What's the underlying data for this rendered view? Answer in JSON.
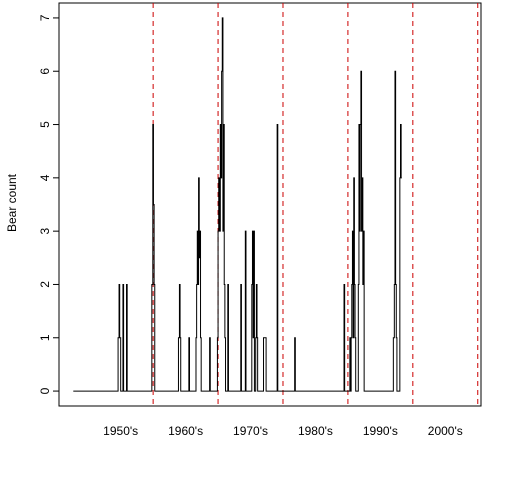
{
  "chart_data": {
    "type": "line",
    "title": "",
    "xlabel": "",
    "ylabel": "Bear count",
    "xlim": [
      1945.5,
      2010.5
    ],
    "ylim": [
      -0.28,
      7.28
    ],
    "y_ticks": [
      0,
      1,
      2,
      3,
      4,
      5,
      6,
      7
    ],
    "decades": [
      {
        "label": "1950's",
        "center": 1955
      },
      {
        "label": "1960's",
        "center": 1965
      },
      {
        "label": "1970's",
        "center": 1975
      },
      {
        "label": "1980's",
        "center": 1985
      },
      {
        "label": "1990's",
        "center": 1995
      },
      {
        "label": "2000's",
        "center": 2005
      }
    ],
    "dividers": [
      1960,
      1970,
      1980,
      1990,
      2000,
      2010
    ],
    "line_color": "#000000",
    "divider_color": "#cc0000",
    "series": [
      {
        "points": [
          [
            1947.7,
            0
          ],
          [
            1954.6,
            0
          ],
          [
            1954.6,
            1
          ],
          [
            1954.75,
            1
          ],
          [
            1954.75,
            2
          ],
          [
            1954.85,
            2
          ],
          [
            1954.85,
            1
          ],
          [
            1955.0,
            1
          ],
          [
            1955.0,
            0
          ],
          [
            1955.35,
            0
          ],
          [
            1955.35,
            2
          ],
          [
            1955.45,
            2
          ],
          [
            1955.45,
            0
          ],
          [
            1955.9,
            0
          ],
          [
            1955.9,
            2
          ],
          [
            1956.0,
            2
          ],
          [
            1956.0,
            0
          ],
          [
            1959.8,
            0
          ],
          [
            1959.8,
            2
          ],
          [
            1959.95,
            2
          ],
          [
            1959.95,
            5
          ],
          [
            1960.05,
            5
          ],
          [
            1960.05,
            3.5
          ],
          [
            1960.15,
            3.5
          ],
          [
            1960.15,
            2
          ],
          [
            1960.25,
            2
          ],
          [
            1960.25,
            0
          ],
          [
            1963.9,
            0
          ],
          [
            1963.9,
            1
          ],
          [
            1964.05,
            1
          ],
          [
            1964.05,
            2
          ],
          [
            1964.15,
            2
          ],
          [
            1964.15,
            1
          ],
          [
            1964.25,
            1
          ],
          [
            1964.25,
            0
          ],
          [
            1965.5,
            0
          ],
          [
            1965.5,
            1
          ],
          [
            1965.6,
            1
          ],
          [
            1965.6,
            0
          ],
          [
            1966.6,
            0
          ],
          [
            1966.6,
            1
          ],
          [
            1966.7,
            1
          ],
          [
            1966.7,
            2
          ],
          [
            1966.8,
            2
          ],
          [
            1966.8,
            3
          ],
          [
            1966.9,
            3
          ],
          [
            1966.9,
            2
          ],
          [
            1967.0,
            2
          ],
          [
            1967.0,
            4
          ],
          [
            1967.1,
            4
          ],
          [
            1967.1,
            2.5
          ],
          [
            1967.2,
            2.5
          ],
          [
            1967.2,
            3
          ],
          [
            1967.3,
            3
          ],
          [
            1967.3,
            1
          ],
          [
            1967.4,
            1
          ],
          [
            1967.4,
            0
          ],
          [
            1968.7,
            0
          ],
          [
            1968.7,
            1
          ],
          [
            1968.8,
            1
          ],
          [
            1968.8,
            0
          ],
          [
            1969.9,
            0
          ],
          [
            1969.9,
            1
          ],
          [
            1970.0,
            1
          ],
          [
            1970.0,
            3
          ],
          [
            1970.1,
            3
          ],
          [
            1970.1,
            4
          ],
          [
            1970.2,
            4
          ],
          [
            1970.2,
            3
          ],
          [
            1970.35,
            3
          ],
          [
            1970.35,
            5
          ],
          [
            1970.45,
            5
          ],
          [
            1970.45,
            4
          ],
          [
            1970.55,
            4
          ],
          [
            1970.55,
            6
          ],
          [
            1970.65,
            6
          ],
          [
            1970.65,
            7
          ],
          [
            1970.75,
            7
          ],
          [
            1970.75,
            3
          ],
          [
            1970.85,
            3
          ],
          [
            1970.85,
            5
          ],
          [
            1970.95,
            5
          ],
          [
            1970.95,
            2
          ],
          [
            1971.05,
            2
          ],
          [
            1971.05,
            1
          ],
          [
            1971.15,
            1
          ],
          [
            1971.15,
            0
          ],
          [
            1971.5,
            0
          ],
          [
            1971.5,
            2
          ],
          [
            1971.6,
            2
          ],
          [
            1971.6,
            0
          ],
          [
            1973.5,
            0
          ],
          [
            1973.5,
            2
          ],
          [
            1973.6,
            2
          ],
          [
            1973.6,
            0
          ],
          [
            1974.2,
            0
          ],
          [
            1974.2,
            3
          ],
          [
            1974.3,
            3
          ],
          [
            1974.3,
            0
          ],
          [
            1975.2,
            0
          ],
          [
            1975.2,
            2
          ],
          [
            1975.3,
            2
          ],
          [
            1975.3,
            3
          ],
          [
            1975.4,
            3
          ],
          [
            1975.4,
            1
          ],
          [
            1975.5,
            1
          ],
          [
            1975.5,
            3
          ],
          [
            1975.6,
            3
          ],
          [
            1975.6,
            0
          ],
          [
            1975.8,
            0
          ],
          [
            1975.8,
            1
          ],
          [
            1975.9,
            1
          ],
          [
            1975.9,
            2
          ],
          [
            1976.0,
            2
          ],
          [
            1976.0,
            1
          ],
          [
            1976.1,
            1
          ],
          [
            1976.1,
            0
          ],
          [
            1977.0,
            0
          ],
          [
            1977.0,
            1
          ],
          [
            1977.4,
            1
          ],
          [
            1977.4,
            0
          ],
          [
            1979.1,
            0
          ],
          [
            1979.1,
            5
          ],
          [
            1979.2,
            5
          ],
          [
            1979.2,
            0
          ],
          [
            1981.8,
            0
          ],
          [
            1981.8,
            1
          ],
          [
            1981.9,
            1
          ],
          [
            1981.9,
            0
          ],
          [
            1989.4,
            0
          ],
          [
            1989.4,
            2
          ],
          [
            1989.5,
            2
          ],
          [
            1989.5,
            0
          ],
          [
            1990.3,
            0
          ],
          [
            1990.3,
            1
          ],
          [
            1990.4,
            1
          ],
          [
            1990.4,
            0
          ],
          [
            1990.5,
            0
          ],
          [
            1990.5,
            1
          ],
          [
            1990.6,
            1
          ],
          [
            1990.6,
            2
          ],
          [
            1990.7,
            2
          ],
          [
            1990.7,
            3
          ],
          [
            1990.8,
            3
          ],
          [
            1990.8,
            1
          ],
          [
            1990.9,
            1
          ],
          [
            1990.9,
            4
          ],
          [
            1991.0,
            4
          ],
          [
            1991.0,
            2
          ],
          [
            1991.1,
            2
          ],
          [
            1991.1,
            1
          ],
          [
            1991.2,
            1
          ],
          [
            1991.2,
            0
          ],
          [
            1991.6,
            0
          ],
          [
            1991.6,
            2
          ],
          [
            1991.7,
            2
          ],
          [
            1991.7,
            5
          ],
          [
            1991.8,
            5
          ],
          [
            1991.8,
            3
          ],
          [
            1991.9,
            3
          ],
          [
            1991.9,
            5
          ],
          [
            1992.0,
            5
          ],
          [
            1992.0,
            6
          ],
          [
            1992.1,
            6
          ],
          [
            1992.1,
            3
          ],
          [
            1992.2,
            3
          ],
          [
            1992.2,
            4
          ],
          [
            1992.3,
            4
          ],
          [
            1992.3,
            2
          ],
          [
            1992.4,
            2
          ],
          [
            1992.4,
            3
          ],
          [
            1992.5,
            3
          ],
          [
            1992.5,
            0
          ],
          [
            1997.0,
            0
          ],
          [
            1997.0,
            1
          ],
          [
            1997.15,
            1
          ],
          [
            1997.15,
            2
          ],
          [
            1997.25,
            2
          ],
          [
            1997.25,
            6
          ],
          [
            1997.35,
            6
          ],
          [
            1997.35,
            2
          ],
          [
            1997.45,
            2
          ],
          [
            1997.45,
            1
          ],
          [
            1997.55,
            1
          ],
          [
            1997.55,
            0
          ],
          [
            1998.0,
            0
          ],
          [
            1998.0,
            4
          ],
          [
            1998.1,
            4
          ],
          [
            1998.1,
            5
          ],
          [
            1998.2,
            5
          ],
          [
            1998.2,
            4
          ],
          [
            1998.3,
            4
          ]
        ]
      }
    ]
  }
}
